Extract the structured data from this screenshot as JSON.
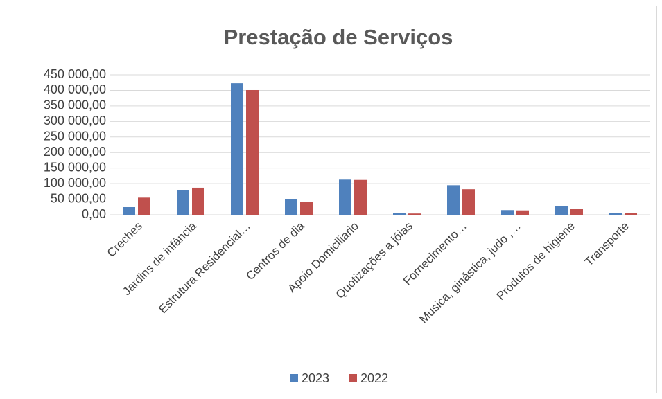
{
  "chart_data": {
    "type": "bar",
    "title": "Prestação de Serviços",
    "categories": [
      "Creches",
      "Jardins de infância",
      "Estrutura Residencial…",
      "Centros de dia",
      "Apoio Domiciliario",
      "Quotizações a jóias",
      "Fornecimento…",
      "Musica, ginástica, judo ,…",
      "Produtos de higiene",
      "Transporte"
    ],
    "series": [
      {
        "name": "2023",
        "color": "#4f81bd",
        "values": [
          24500,
          78000,
          423000,
          51000,
          113000,
          5000,
          95000,
          15000,
          28000,
          5000
        ]
      },
      {
        "name": "2022",
        "color": "#c0504d",
        "values": [
          55000,
          87000,
          401000,
          42000,
          112000,
          4000,
          82000,
          14000,
          19000,
          5000
        ]
      }
    ],
    "ylim": [
      0,
      450000
    ],
    "yticks": [
      {
        "value": 0,
        "label": "0,00"
      },
      {
        "value": 50000,
        "label": "50 000,00"
      },
      {
        "value": 100000,
        "label": "100 000,00"
      },
      {
        "value": 150000,
        "label": "150 000,00"
      },
      {
        "value": 200000,
        "label": "200 000,00"
      },
      {
        "value": 250000,
        "label": "250 000,00"
      },
      {
        "value": 300000,
        "label": "300 000,00"
      },
      {
        "value": 350000,
        "label": "350 000,00"
      },
      {
        "value": 400000,
        "label": "400 000,00"
      },
      {
        "value": 450000,
        "label": "450 000,00"
      }
    ],
    "grid": true,
    "legend": "bottom"
  }
}
